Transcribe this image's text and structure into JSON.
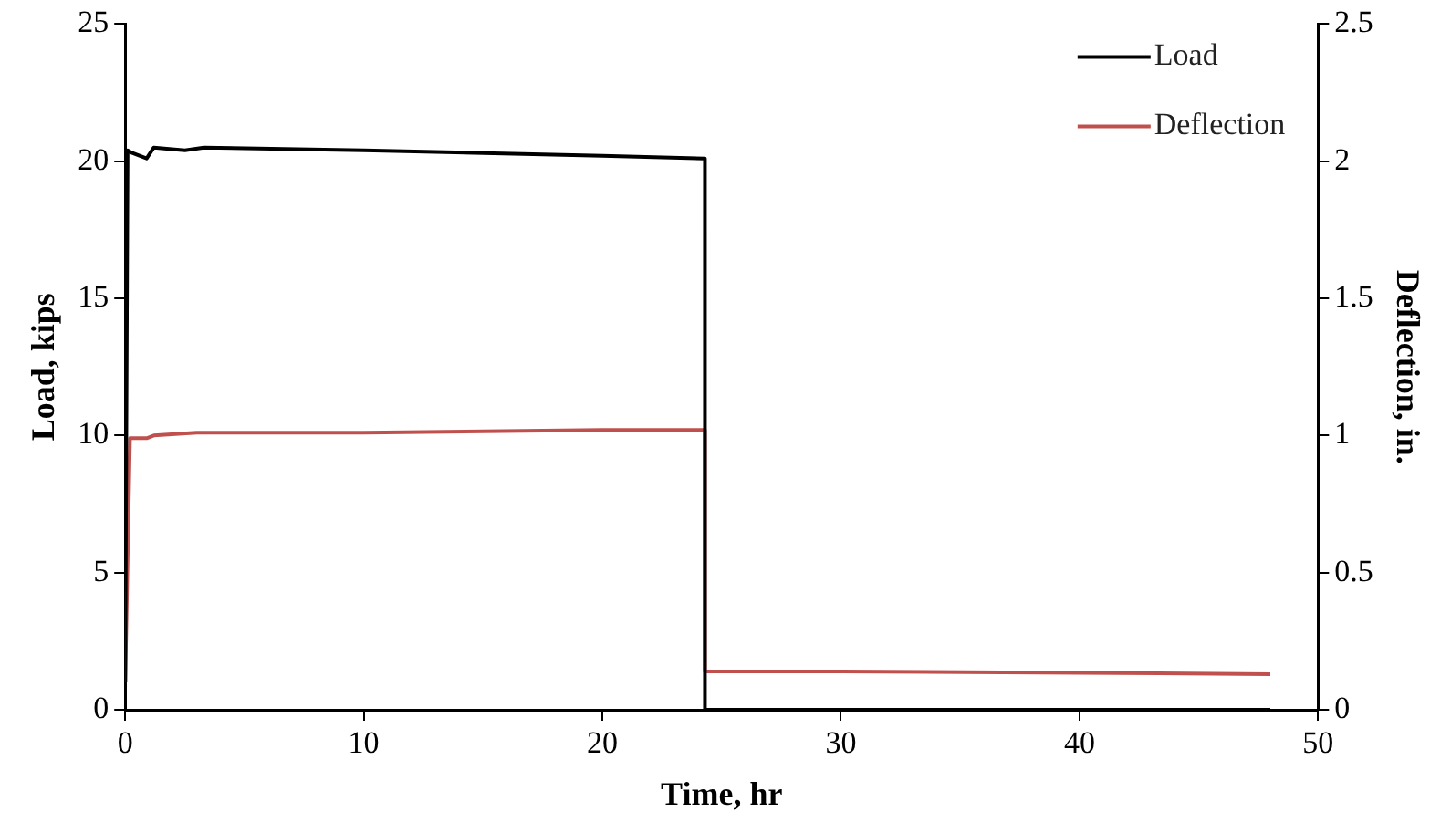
{
  "chart_data": {
    "type": "line",
    "xlabel": "Time, hr",
    "ylabel": "Load, kips",
    "y2label": "Deflection, in.",
    "xlim": [
      0,
      50
    ],
    "xticks": [
      0,
      10,
      20,
      30,
      40,
      50
    ],
    "ylim": [
      0,
      25
    ],
    "yticks": [
      0,
      5,
      10,
      15,
      20,
      25
    ],
    "y2lim": [
      0,
      2.5
    ],
    "y2ticks": [
      0,
      0.5,
      1,
      1.5,
      2,
      2.5
    ],
    "grid": false,
    "legend": "top right",
    "marker": "none",
    "line_style": "solid",
    "series": [
      {
        "name": "Load",
        "color": "#000000",
        "x": [
          0,
          0.1,
          0.3,
          0.9,
          1.2,
          2.5,
          3.3,
          10,
          20,
          24.3,
          24.3,
          30,
          40,
          48
        ],
        "values": [
          1,
          20.4,
          20.3,
          20.1,
          20.5,
          20.4,
          20.5,
          20.4,
          20.2,
          20.1,
          0,
          0,
          0,
          0
        ]
      },
      {
        "name": "Deflection",
        "color": "#c0504d",
        "axis": "y2",
        "x": [
          0,
          0.2,
          0.9,
          1.2,
          3,
          10,
          20,
          24.3,
          24.3,
          30,
          40,
          48
        ],
        "values": [
          0.1,
          0.99,
          0.99,
          1.0,
          1.01,
          1.01,
          1.02,
          1.02,
          0.14,
          0.14,
          0.135,
          0.13
        ]
      }
    ]
  }
}
